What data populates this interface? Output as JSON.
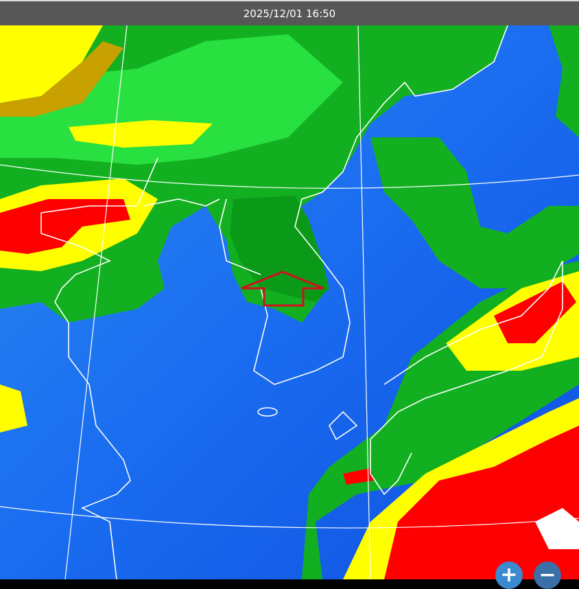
{
  "header": {
    "timestamp": "2025/12/01 16:50"
  },
  "map": {
    "type": "infrared satellite cloud imagery",
    "colors": {
      "clear": "#1a6cf0",
      "low_cloud": "#10b020",
      "mid_cloud": "#c8a000",
      "high_cloud": "#ffff00",
      "very_high_cloud": "#ff0000",
      "coastline": "#ffffff",
      "graticule": "#ffffff",
      "marker": "#d01020"
    },
    "marker_icon": "up-arrow-outline-icon"
  },
  "controls": {
    "zoom_in": "+",
    "zoom_out": "−"
  }
}
